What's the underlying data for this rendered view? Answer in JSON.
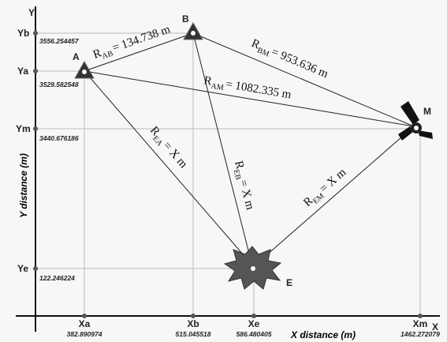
{
  "axes": {
    "y_label": "Y",
    "x_label": "X",
    "y_title": "Y distance (m)",
    "x_title": "X distance (m)"
  },
  "y_ticks": [
    {
      "label": "Yb",
      "value": "3556.254457"
    },
    {
      "label": "Ya",
      "value": "3529.582548"
    },
    {
      "label": "Ym",
      "value": "3440.676186"
    },
    {
      "label": "Ye",
      "value": "122.246224"
    }
  ],
  "x_ticks": [
    {
      "label": "Xa",
      "value": "382.890974"
    },
    {
      "label": "Xb",
      "value": "515.045518"
    },
    {
      "label": "Xe",
      "value": "586.480405"
    },
    {
      "label": "Xm",
      "value": "1462.272079"
    }
  ],
  "nodes": [
    {
      "label": "A"
    },
    {
      "label": "B"
    },
    {
      "label": "M"
    },
    {
      "label": "E"
    }
  ],
  "edges": [
    {
      "symbol": "R",
      "subscript": "AB",
      "text": "= 134.738 m"
    },
    {
      "symbol": "R",
      "subscript": "BM",
      "text": "= 953.636 m"
    },
    {
      "symbol": "R",
      "subscript": "AM",
      "text": "= 1082.335 m"
    },
    {
      "symbol": "R",
      "subscript": "EA",
      "text": "= X m"
    },
    {
      "symbol": "R",
      "subscript": "EB",
      "text": "= X m"
    },
    {
      "symbol": "R",
      "subscript": "EM",
      "text": "= X m"
    }
  ]
}
